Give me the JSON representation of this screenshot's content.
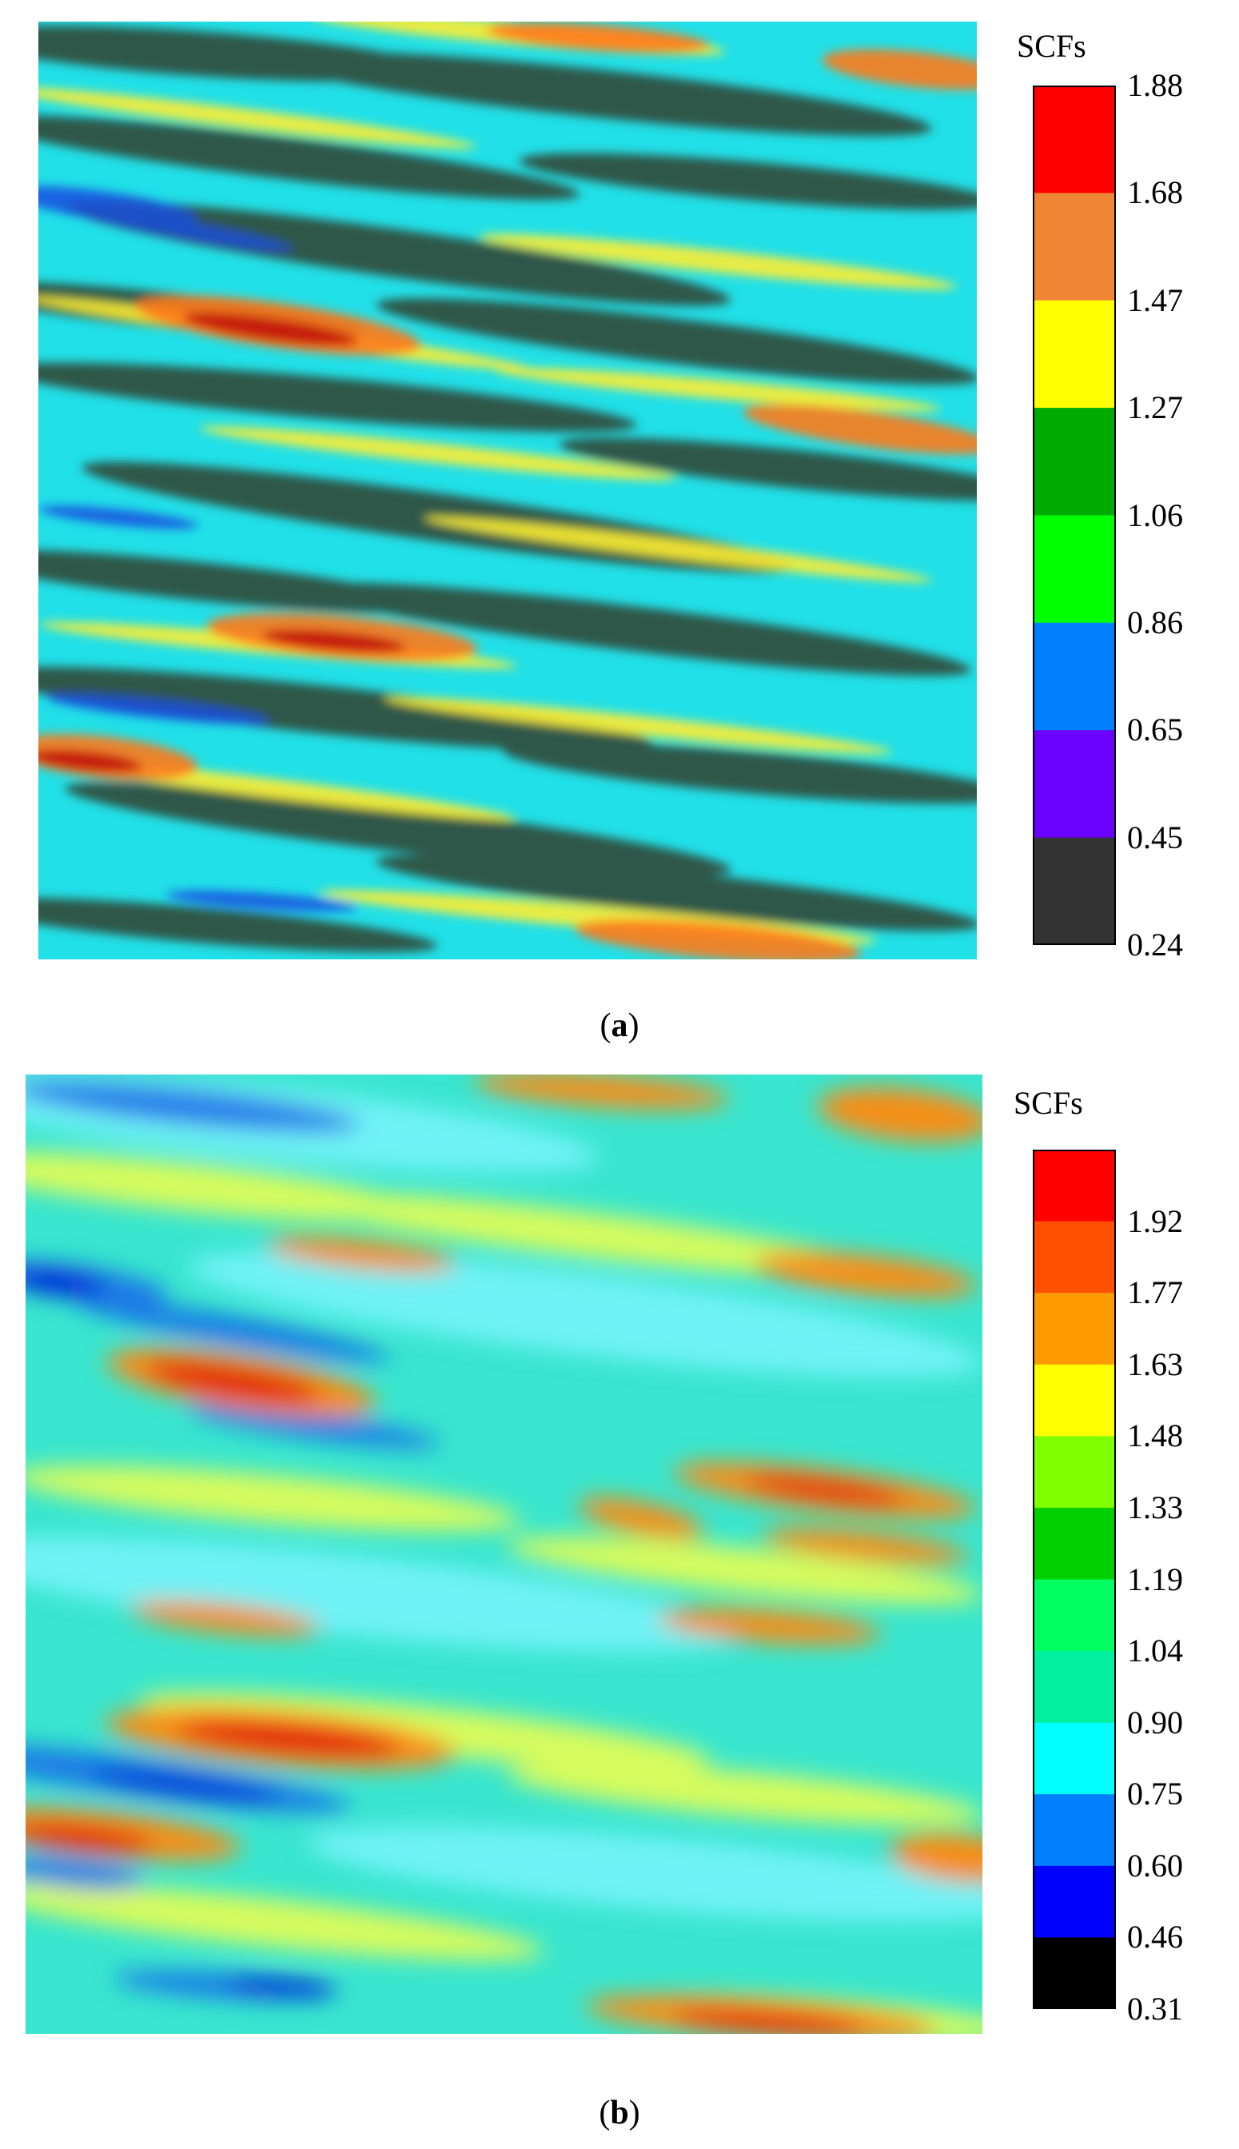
{
  "chart_data": [
    {
      "type": "heatmap",
      "panel_label": "a",
      "colorbar": {
        "title": "SCFs",
        "tick_labels": [
          "1.88",
          "1.68",
          "1.47",
          "1.27",
          "1.06",
          "0.86",
          "0.65",
          "0.45",
          "0.24"
        ],
        "colors_top_to_bottom": [
          "#ff0000",
          "#ef8535",
          "#ffff00",
          "#00aa00",
          "#00ff00",
          "#0080ff",
          "#6a00ff",
          "#333333"
        ]
      }
    },
    {
      "type": "heatmap",
      "panel_label": "b",
      "colorbar": {
        "title": "SCFs",
        "tick_labels": [
          "1.92",
          "1.77",
          "1.63",
          "1.48",
          "1.33",
          "1.19",
          "1.04",
          "0.90",
          "0.75",
          "0.60",
          "0.46",
          "0.31"
        ],
        "colors_top_to_bottom": [
          "#ff0000",
          "#ff5000",
          "#ff9a00",
          "#ffff00",
          "#80ff00",
          "#00d000",
          "#00ff60",
          "#00f0a0",
          "#00ffff",
          "#0080ff",
          "#0000ff",
          "#000000"
        ]
      }
    }
  ]
}
